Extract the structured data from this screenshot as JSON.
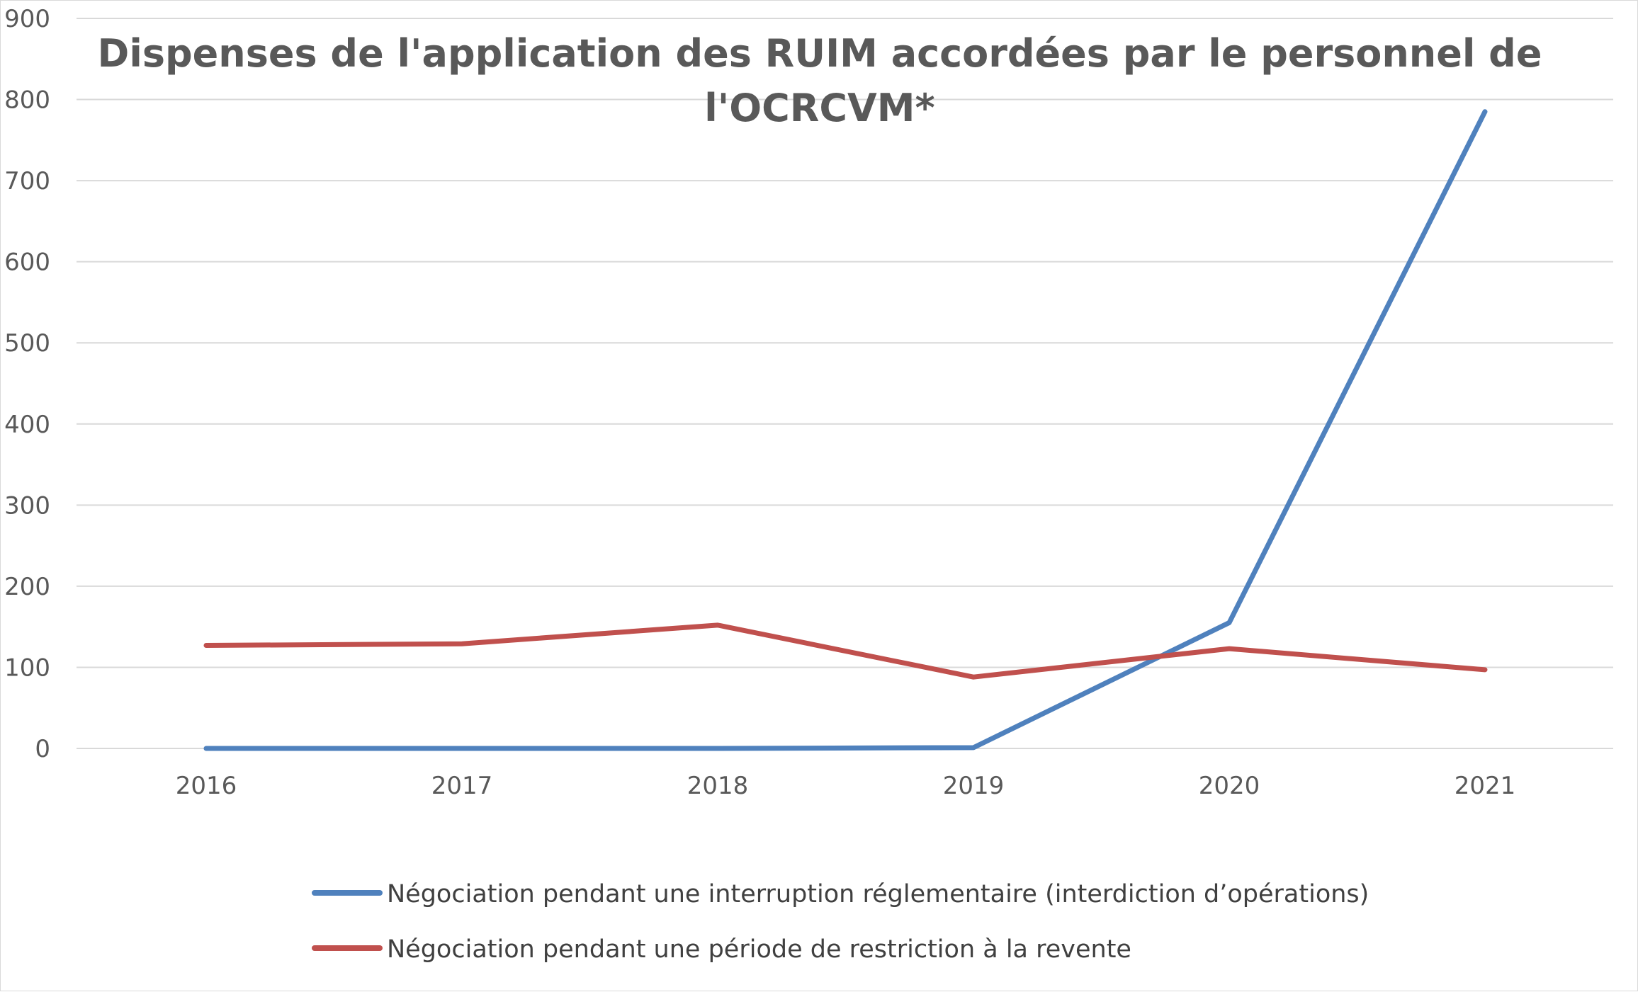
{
  "chart_data": {
    "type": "line",
    "title": "Dispenses de l'application des RUIM accordées par le personnel de l'OCRCVM*",
    "title_lines": [
      "Dispenses de l'application des RUIM accordées par le personnel de",
      "l'OCRCVM*"
    ],
    "xlabel": "",
    "ylabel": "",
    "categories": [
      "2016",
      "2017",
      "2018",
      "2019",
      "2020",
      "2021"
    ],
    "ylim": [
      0,
      900
    ],
    "yticks": [
      0,
      100,
      200,
      300,
      400,
      500,
      600,
      700,
      800,
      900
    ],
    "ytick_labels": [
      "0",
      "100",
      "200",
      "300",
      "400",
      "500",
      "600",
      "700",
      "800",
      "900"
    ],
    "grid": true,
    "legend_position": "bottom",
    "series": [
      {
        "name": "Négociation pendant une interruption réglementaire (interdiction d’opérations)",
        "color": "#4f81bd",
        "values": [
          0,
          0,
          0,
          1,
          155,
          785
        ]
      },
      {
        "name": "Négociation pendant une période de restriction à la revente",
        "color": "#c0504d",
        "values": [
          127,
          129,
          152,
          88,
          123,
          97
        ]
      }
    ]
  }
}
